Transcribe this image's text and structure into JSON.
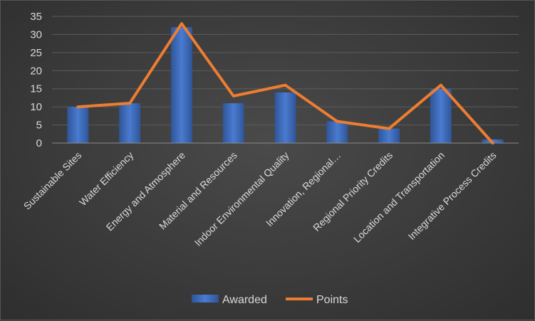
{
  "chart_data": {
    "type": "bar",
    "categories": [
      "Sustainable Sites",
      "Water Efficiency",
      "Energy and Atmosphere",
      "Material and Resources",
      "Indoor Environmental Quality",
      "Innovation, Regional…",
      "Regional Priority Credits",
      "Location and Transportation",
      "Integrative Process Credits"
    ],
    "series": [
      {
        "name": "Awarded",
        "type": "bar",
        "color": "#4472c4",
        "values": [
          10,
          11,
          32,
          11,
          14,
          6,
          4,
          15,
          1
        ]
      },
      {
        "name": "Points",
        "type": "line",
        "color": "#ed7d31",
        "values": [
          10,
          11,
          33,
          13,
          16,
          6,
          4,
          16,
          0
        ]
      }
    ],
    "yticks": [
      "0",
      "5",
      "10",
      "15",
      "20",
      "25",
      "30",
      "35"
    ],
    "ylim": [
      0,
      35
    ],
    "grid": true,
    "legend": "bottom",
    "title": "",
    "xlabel": "",
    "ylabel": ""
  }
}
